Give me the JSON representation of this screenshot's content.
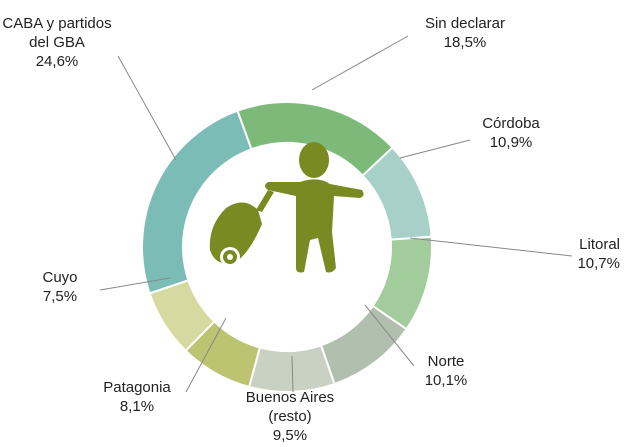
{
  "chart_data": {
    "type": "donut",
    "categories": [
      "Sin declarar",
      "Córdoba",
      "Litoral",
      "Norte",
      "Buenos Aires (resto)",
      "Patagonia",
      "Cuyo",
      "CABA y partidos del GBA"
    ],
    "values": [
      18.5,
      10.9,
      10.7,
      10.1,
      9.5,
      8.1,
      7.5,
      24.6
    ],
    "value_labels": [
      "18,5%",
      "10,9%",
      "10,7%",
      "10,1%",
      "9,5%",
      "8,1%",
      "7,5%",
      "24,6%"
    ],
    "colors": [
      "#7dba7a",
      "#a6d0c8",
      "#a3cc9c",
      "#b1bfae",
      "#c9d1c3",
      "#bcc472",
      "#d6d9a0",
      "#7bbcb6"
    ]
  }
}
